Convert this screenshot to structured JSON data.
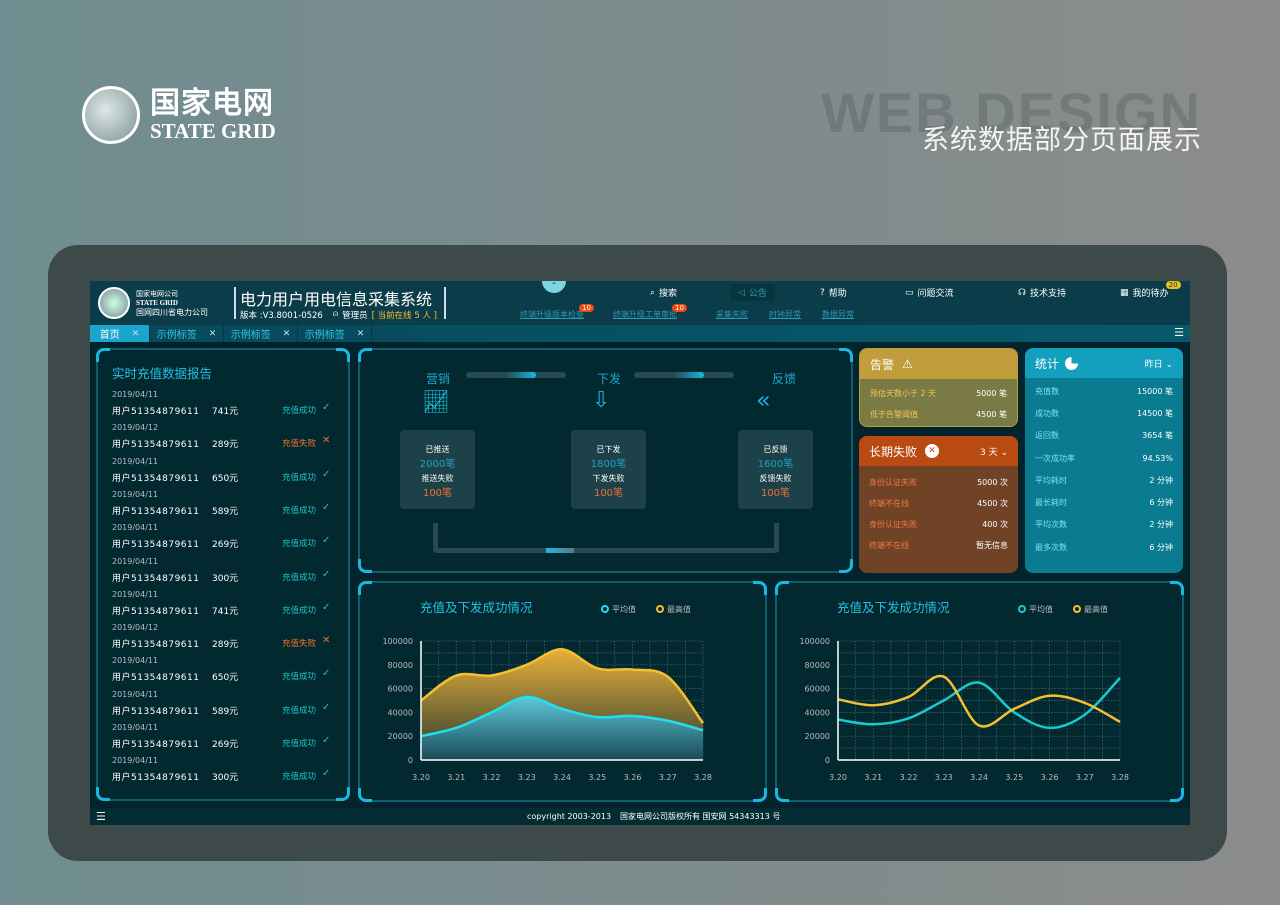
{
  "page": {
    "brand_cn": "国家电网",
    "brand_en": "STATE GRID",
    "logo_ring": "STATE GRID CORPORATION OF CHINA 国家电网公司",
    "watermark": "WEB DESIGN",
    "subtitle": "系统数据部分页面展示"
  },
  "header": {
    "logo_line1": "国家电网公司",
    "logo_line2": "STATE GRID",
    "logo_line3": "国网四川省电力公司",
    "title": "电力用户用电信息采集系统",
    "version": "版本 :V3.8001-0526",
    "user": "管理员",
    "online": "[ 当前在线 5 人 ]",
    "nav": [
      {
        "label": "搜索",
        "icon": "search-icon"
      },
      {
        "label": "公告",
        "icon": "speaker-icon"
      },
      {
        "label": "帮助",
        "icon": "help-icon"
      },
      {
        "label": "问题交流",
        "icon": "chat-icon"
      },
      {
        "label": "技术支持",
        "icon": "headset-icon"
      },
      {
        "label": "我的待办",
        "icon": "todo-icon",
        "badge": "20"
      }
    ],
    "sublinks": [
      {
        "label": "终端升级版本检查",
        "badge": "10"
      },
      {
        "label": "终端升级工单审批",
        "badge": "10"
      },
      {
        "label": "采集失败"
      },
      {
        "label": "时钟异常"
      },
      {
        "label": "数据异常"
      }
    ]
  },
  "tabs": [
    {
      "label": "首页"
    },
    {
      "label": "示例标签"
    },
    {
      "label": "示例标签"
    },
    {
      "label": "示例标签"
    }
  ],
  "report": {
    "title": "实时充值数据报告",
    "rows": [
      {
        "date": "2019/04/11",
        "user": "用户51354879611",
        "amount": "741元",
        "status": "充值成功",
        "ok": true
      },
      {
        "date": "2019/04/12",
        "user": "用户51354879611",
        "amount": "289元",
        "status": "充值失败",
        "ok": false
      },
      {
        "date": "2019/04/11",
        "user": "用户51354879611",
        "amount": "650元",
        "status": "充值成功",
        "ok": true
      },
      {
        "date": "2019/04/11",
        "user": "用户51354879611",
        "amount": "589元",
        "status": "充值成功",
        "ok": true
      },
      {
        "date": "2019/04/11",
        "user": "用户51354879611",
        "amount": "269元",
        "status": "充值成功",
        "ok": true
      },
      {
        "date": "2019/04/11",
        "user": "用户51354879611",
        "amount": "300元",
        "status": "充值成功",
        "ok": true
      },
      {
        "date": "2019/04/11",
        "user": "用户51354879611",
        "amount": "741元",
        "status": "充值成功",
        "ok": true
      },
      {
        "date": "2019/04/12",
        "user": "用户51354879611",
        "amount": "289元",
        "status": "充值失败",
        "ok": false
      },
      {
        "date": "2019/04/11",
        "user": "用户51354879611",
        "amount": "650元",
        "status": "充值成功",
        "ok": true
      },
      {
        "date": "2019/04/11",
        "user": "用户51354879611",
        "amount": "589元",
        "status": "充值成功",
        "ok": true
      },
      {
        "date": "2019/04/11",
        "user": "用户51354879611",
        "amount": "269元",
        "status": "充值成功",
        "ok": true
      },
      {
        "date": "2019/04/11",
        "user": "用户51354879611",
        "amount": "300元",
        "status": "充值成功",
        "ok": true
      }
    ]
  },
  "flow": {
    "stages": [
      {
        "label": "营销",
        "done_label": "已推送",
        "done": "2000笔",
        "fail_label": "推送失败",
        "fail": "100笔"
      },
      {
        "label": "下发",
        "done_label": "已下发",
        "done": "1800笔",
        "fail_label": "下发失败",
        "fail": "100笔"
      },
      {
        "label": "反馈",
        "done_label": "已反馈",
        "done": "1600笔",
        "fail_label": "反馈失败",
        "fail": "100笔"
      }
    ]
  },
  "alert": {
    "title": "告警",
    "items": [
      {
        "k": "预估天数小于 2 天",
        "v": "5000 笔"
      },
      {
        "k": "低于告警阈值",
        "v": "4500 笔"
      }
    ]
  },
  "longfail": {
    "title": "长期失败",
    "period": "3 天",
    "items": [
      {
        "k": "身份认证失败",
        "v": "5000 次"
      },
      {
        "k": "终端不在线",
        "v": "4500 次"
      },
      {
        "k": "身份认证失败",
        "v": "400 次"
      },
      {
        "k": "终端不在线",
        "v": "暂无信息"
      }
    ]
  },
  "stats": {
    "title": "统计",
    "period": "昨日",
    "items": [
      {
        "k": "充值数",
        "v": "15000 笔"
      },
      {
        "k": "成功数",
        "v": "14500 笔"
      },
      {
        "k": "返回数",
        "v": "3654 笔"
      },
      {
        "k": "一次成功率",
        "v": "94.53%"
      },
      {
        "k": "平均耗时",
        "v": "2 分钟"
      },
      {
        "k": "最长耗时",
        "v": "6 分钟"
      },
      {
        "k": "平均次数",
        "v": "2 分钟"
      },
      {
        "k": "最多次数",
        "v": "6 分钟"
      }
    ]
  },
  "chart_data": [
    {
      "type": "area",
      "title": "充值及下发成功情况",
      "categories": [
        "3.20",
        "3.21",
        "3.22",
        "3.23",
        "3.24",
        "3.25",
        "3.26",
        "3.27",
        "3.28"
      ],
      "ylim": [
        0,
        100000
      ],
      "yticks": [
        "100000",
        "80000",
        "60000",
        "40000",
        "20000",
        "0"
      ],
      "grid": true,
      "legend": "top-right",
      "series": [
        {
          "name": "平均值",
          "color": "#1fe0f0",
          "values": [
            20000,
            27000,
            40000,
            53000,
            43000,
            36000,
            37000,
            33000,
            25000
          ]
        },
        {
          "name": "最高值",
          "color": "#f5c030",
          "values": [
            50000,
            71000,
            71000,
            80000,
            93000,
            77000,
            76000,
            70000,
            31000
          ]
        }
      ]
    },
    {
      "type": "line",
      "title": "充值及下发成功情况",
      "categories": [
        "3.20",
        "3.21",
        "3.22",
        "3.23",
        "3.24",
        "3.25",
        "3.26",
        "3.27",
        "3.28"
      ],
      "ylim": [
        0,
        100000
      ],
      "yticks": [
        "100000",
        "80000",
        "60000",
        "40000",
        "20000",
        "0"
      ],
      "grid": true,
      "legend": "top-right",
      "series": [
        {
          "name": "平均值",
          "color": "#19c9cc",
          "values": [
            34000,
            30000,
            35000,
            50000,
            65000,
            40000,
            27000,
            38000,
            69000
          ]
        },
        {
          "name": "最高值",
          "color": "#f5c030",
          "values": [
            51000,
            46000,
            53000,
            70000,
            29000,
            43000,
            54000,
            48000,
            32000
          ]
        }
      ]
    }
  ],
  "footer": {
    "copyright": "copyright   2003-2013",
    "owner": "国家电网公司版权所有 国安网 54343313 号"
  }
}
